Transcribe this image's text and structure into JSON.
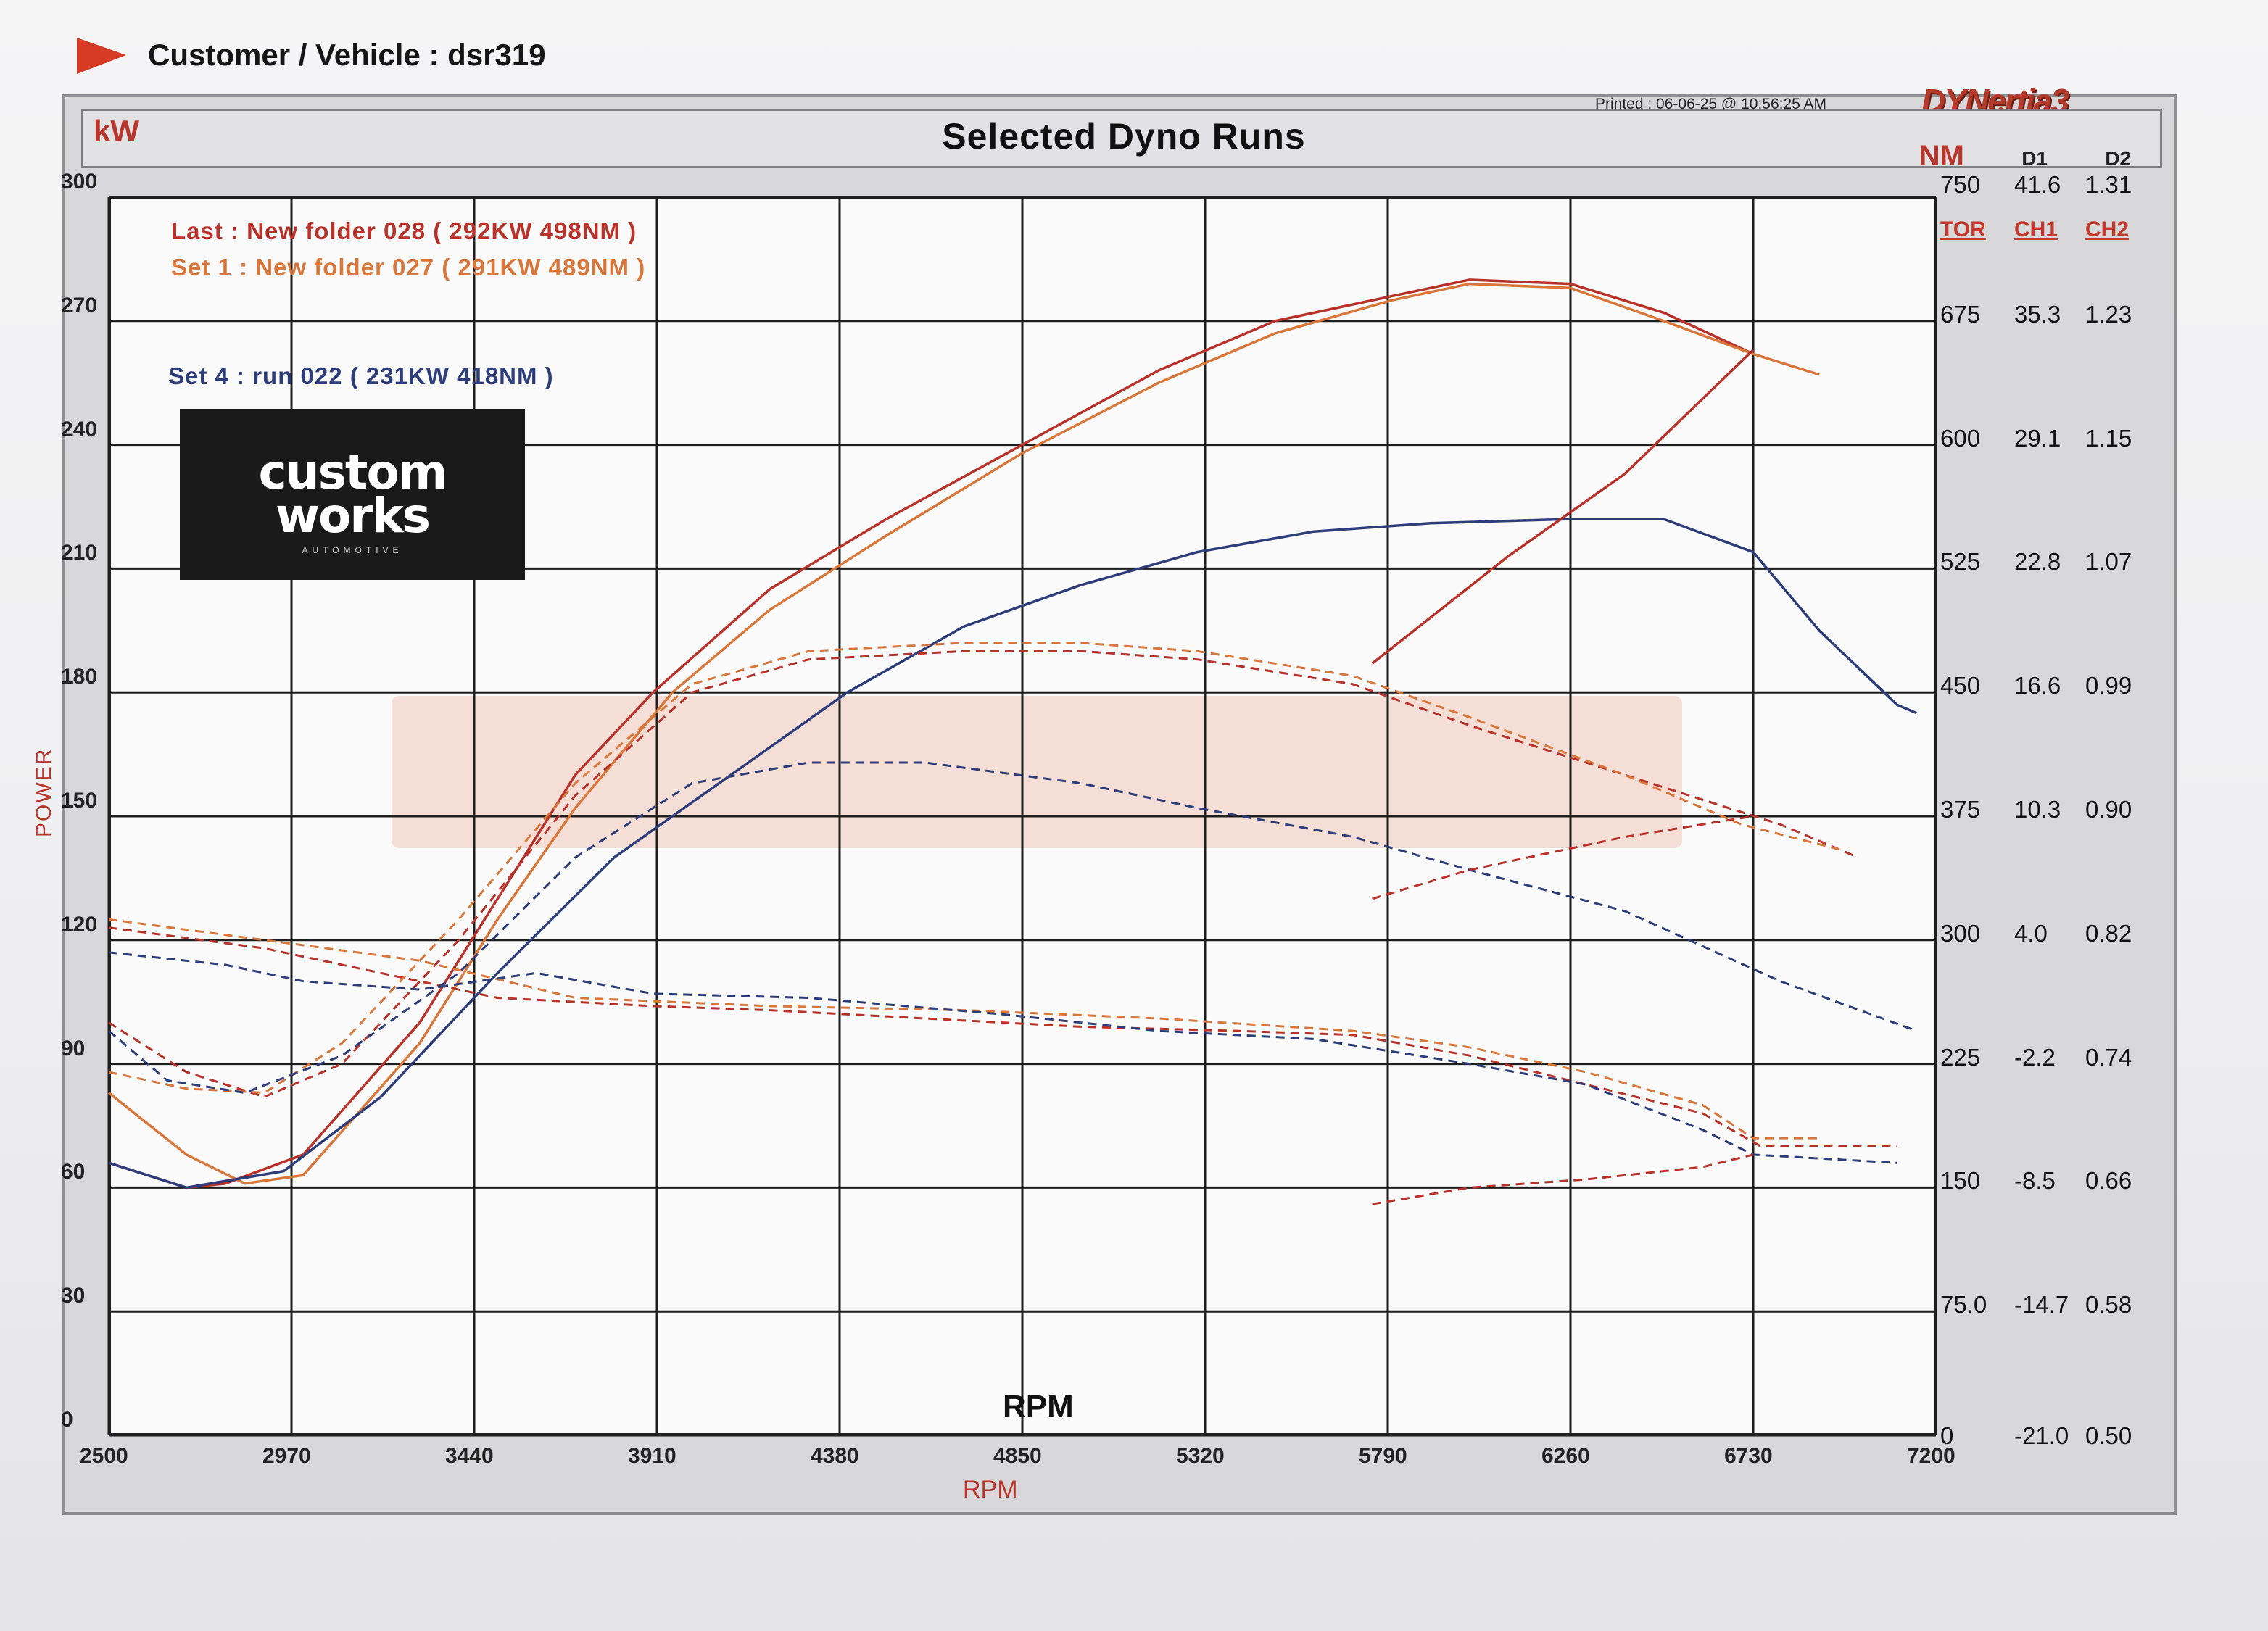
{
  "header": {
    "customer_vehicle": "Customer / Vehicle : dsr319",
    "printed": "Printed : 06-06-25 @ 10:56:25 AM",
    "brand": "DYNertia3"
  },
  "panel": {
    "title": "Selected Dyno Runs",
    "left_unit": "kW",
    "right_unit": "NM",
    "d1": "D1",
    "d2": "D2"
  },
  "logo": {
    "line1": "custom",
    "line2": "works",
    "sub": "AUTOMOTIVE"
  },
  "legend": [
    {
      "text": "Last : New folder 028 ( 292KW  498NM )",
      "color": "#b8322a"
    },
    {
      "text": "Set 1 : New folder 027 ( 291KW  489NM )",
      "color": "#d9773a"
    },
    {
      "text": "Set 4 : run 022 ( 231KW  418NM )",
      "color": "#2c3d7a"
    }
  ],
  "axes": {
    "x_title": "RPM",
    "x_title_2": "RPM",
    "y_title": "POWER",
    "right_headers": [
      "TOR",
      "CH1",
      "CH2"
    ]
  },
  "chart_data": {
    "type": "line",
    "xlim": [
      2500,
      7200
    ],
    "ylim": [
      0,
      300
    ],
    "grid": true,
    "x_ticks": [
      "2500",
      "2970",
      "3440",
      "3910",
      "4380",
      "4850",
      "5320",
      "5790",
      "6260",
      "6730",
      "7200"
    ],
    "y_ticks": [
      "0",
      "30",
      "60",
      "90",
      "120",
      "150",
      "180",
      "210",
      "240",
      "270",
      "300"
    ],
    "right_ticks": [
      [
        "0",
        "-21.0",
        "0.50"
      ],
      [
        "75.0",
        "-14.7",
        "0.58"
      ],
      [
        "150",
        "-8.5",
        "0.66"
      ],
      [
        "225",
        "-2.2",
        "0.74"
      ],
      [
        "300",
        "4.0",
        "0.82"
      ],
      [
        "375",
        "10.3",
        "0.90"
      ],
      [
        "450",
        "16.6",
        "0.99"
      ],
      [
        "525",
        "22.8",
        "1.07"
      ],
      [
        "600",
        "29.1",
        "1.15"
      ],
      [
        "675",
        "35.3",
        "1.23"
      ],
      [
        "750",
        "41.6",
        "1.31"
      ]
    ],
    "series": [
      {
        "name": "Last : New folder 028",
        "color": "#b8322a",
        "style": "solid",
        "points": [
          [
            2500,
            66
          ],
          [
            2700,
            60
          ],
          [
            2800,
            61
          ],
          [
            3000,
            68
          ],
          [
            3300,
            100
          ],
          [
            3500,
            130
          ],
          [
            3700,
            160
          ],
          [
            3900,
            180
          ],
          [
            4200,
            205
          ],
          [
            4500,
            222
          ],
          [
            4850,
            240
          ],
          [
            5200,
            258
          ],
          [
            5500,
            270
          ],
          [
            5800,
            276
          ],
          [
            6000,
            280
          ],
          [
            6260,
            279
          ],
          [
            6500,
            272
          ],
          [
            6730,
            262
          ]
        ]
      },
      {
        "name": "Set 1 : New folder 027",
        "color": "#d9773a",
        "style": "solid",
        "points": [
          [
            2500,
            83
          ],
          [
            2700,
            68
          ],
          [
            2850,
            61
          ],
          [
            3000,
            63
          ],
          [
            3300,
            95
          ],
          [
            3500,
            125
          ],
          [
            3700,
            152
          ],
          [
            3950,
            180
          ],
          [
            4200,
            200
          ],
          [
            4500,
            218
          ],
          [
            4850,
            238
          ],
          [
            5200,
            255
          ],
          [
            5500,
            267
          ],
          [
            5800,
            275
          ],
          [
            6000,
            279
          ],
          [
            6260,
            278
          ],
          [
            6500,
            270
          ],
          [
            6730,
            262
          ],
          [
            6900,
            257
          ]
        ]
      },
      {
        "name": "Set 4 : run 022",
        "color": "#2c3d7a",
        "style": "solid",
        "points": [
          [
            2500,
            66
          ],
          [
            2700,
            60
          ],
          [
            2950,
            64
          ],
          [
            3200,
            82
          ],
          [
            3500,
            112
          ],
          [
            3800,
            140
          ],
          [
            4100,
            160
          ],
          [
            4400,
            180
          ],
          [
            4700,
            196
          ],
          [
            5000,
            206
          ],
          [
            5300,
            214
          ],
          [
            5600,
            219
          ],
          [
            5900,
            221
          ],
          [
            6260,
            222
          ],
          [
            6500,
            222
          ],
          [
            6730,
            214
          ],
          [
            6900,
            195
          ],
          [
            7100,
            177
          ],
          [
            7150,
            175
          ]
        ]
      },
      {
        "name": "",
        "color": "#b8322a",
        "style": "solid",
        "points": [
          [
            5750,
            187
          ],
          [
            6100,
            213
          ],
          [
            6400,
            233
          ],
          [
            6730,
            263
          ]
        ]
      },
      {
        "name": "",
        "color": "#b8322a",
        "style": "dash",
        "points": [
          [
            2500,
            123
          ],
          [
            2900,
            118
          ],
          [
            3200,
            112
          ],
          [
            3500,
            106
          ],
          [
            3900,
            104
          ],
          [
            4200,
            103
          ],
          [
            4600,
            101
          ],
          [
            5000,
            99
          ],
          [
            5400,
            98
          ],
          [
            5700,
            97
          ],
          [
            6000,
            92
          ],
          [
            6300,
            85
          ],
          [
            6600,
            78
          ],
          [
            6750,
            70
          ],
          [
            7100,
            70
          ]
        ]
      },
      {
        "name": "",
        "color": "#d9773a",
        "style": "dash",
        "points": [
          [
            2500,
            125
          ],
          [
            2900,
            120
          ],
          [
            3300,
            115
          ],
          [
            3700,
            106
          ],
          [
            4200,
            104
          ],
          [
            4700,
            103
          ],
          [
            5200,
            101
          ],
          [
            5700,
            98
          ],
          [
            6000,
            94
          ],
          [
            6300,
            88
          ],
          [
            6600,
            80
          ],
          [
            6730,
            72
          ],
          [
            6900,
            72
          ]
        ]
      },
      {
        "name": "",
        "color": "#2c3d7a",
        "style": "dash",
        "points": [
          [
            2500,
            117
          ],
          [
            2800,
            114
          ],
          [
            3000,
            110
          ],
          [
            3300,
            108
          ],
          [
            3600,
            112
          ],
          [
            3900,
            107
          ],
          [
            4300,
            106
          ],
          [
            4800,
            102
          ],
          [
            5200,
            98
          ],
          [
            5600,
            96
          ],
          [
            6000,
            90
          ],
          [
            6300,
            85
          ],
          [
            6600,
            74
          ],
          [
            6730,
            68
          ],
          [
            7100,
            66
          ]
        ]
      },
      {
        "name": "",
        "color": "#b8322a",
        "style": "dash",
        "points": [
          [
            2500,
            100
          ],
          [
            2700,
            88
          ],
          [
            2900,
            82
          ],
          [
            3100,
            90
          ],
          [
            3400,
            120
          ],
          [
            3700,
            155
          ],
          [
            4000,
            180
          ],
          [
            4300,
            188
          ],
          [
            4700,
            190
          ],
          [
            5000,
            190
          ],
          [
            5300,
            188
          ],
          [
            5700,
            182
          ],
          [
            6000,
            172
          ],
          [
            6400,
            160
          ],
          [
            6800,
            148
          ],
          [
            7000,
            140
          ]
        ]
      },
      {
        "name": "",
        "color": "#d9773a",
        "style": "dash",
        "points": [
          [
            2500,
            88
          ],
          [
            2700,
            84
          ],
          [
            2900,
            83
          ],
          [
            3100,
            95
          ],
          [
            3400,
            125
          ],
          [
            3700,
            158
          ],
          [
            4000,
            182
          ],
          [
            4300,
            190
          ],
          [
            4700,
            192
          ],
          [
            5000,
            192
          ],
          [
            5300,
            190
          ],
          [
            5700,
            184
          ],
          [
            6000,
            174
          ],
          [
            6400,
            160
          ],
          [
            6700,
            148
          ],
          [
            6950,
            142
          ]
        ]
      },
      {
        "name": "",
        "color": "#2c3d7a",
        "style": "dash",
        "points": [
          [
            2500,
            98
          ],
          [
            2650,
            86
          ],
          [
            2850,
            83
          ],
          [
            3100,
            92
          ],
          [
            3400,
            112
          ],
          [
            3700,
            140
          ],
          [
            4000,
            158
          ],
          [
            4300,
            163
          ],
          [
            4600,
            163
          ],
          [
            5000,
            158
          ],
          [
            5300,
            152
          ],
          [
            5700,
            145
          ],
          [
            6000,
            137
          ],
          [
            6400,
            127
          ],
          [
            6800,
            110
          ],
          [
            7150,
            98
          ]
        ]
      },
      {
        "name": "",
        "color": "#b8322a",
        "style": "dash",
        "points": [
          [
            5750,
            130
          ],
          [
            6000,
            137
          ],
          [
            6400,
            145
          ],
          [
            6730,
            150
          ]
        ]
      },
      {
        "name": "",
        "color": "#b8322a",
        "style": "dash",
        "points": [
          [
            5750,
            56
          ],
          [
            6000,
            60
          ],
          [
            6300,
            62
          ],
          [
            6600,
            65
          ],
          [
            6730,
            68
          ]
        ]
      }
    ]
  }
}
